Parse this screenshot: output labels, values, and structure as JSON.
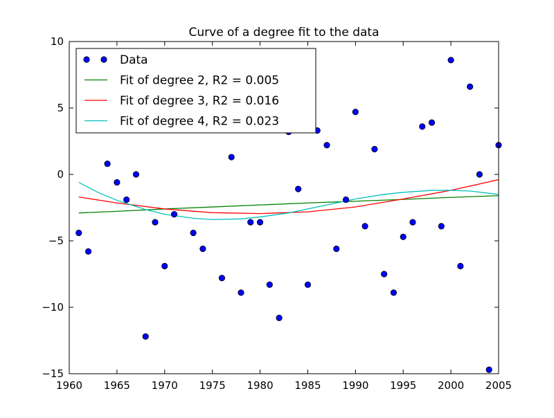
{
  "chart_data": {
    "type": "scatter",
    "title": "Curve of a degree fit to the data",
    "xlabel": "",
    "ylabel": "",
    "xlim": [
      1960,
      2005
    ],
    "ylim": [
      -15,
      10
    ],
    "xticks": [
      1960,
      1965,
      1970,
      1975,
      1980,
      1985,
      1990,
      1995,
      2000,
      2005
    ],
    "yticks": [
      10,
      5,
      0,
      -5,
      -10,
      -15
    ],
    "ytick_labels": [
      "10",
      "5",
      "0",
      "−5",
      "−10",
      "−15"
    ],
    "grid": false,
    "legend_position": "top-left",
    "series": [
      {
        "name": "Data",
        "kind": "markers",
        "color": "#0000ff",
        "x": [
          1961,
          1962,
          1964,
          1965,
          1966,
          1967,
          1968,
          1969,
          1970,
          1971,
          1973,
          1974,
          1976,
          1977,
          1978,
          1979,
          1980,
          1981,
          1982,
          1983,
          1984,
          1985,
          1986,
          1987,
          1988,
          1989,
          1990,
          1991,
          1992,
          1993,
          1994,
          1995,
          1996,
          1997,
          1998,
          1999,
          2000,
          2001,
          2002,
          2003,
          2004,
          2005
        ],
        "y": [
          -4.4,
          -5.8,
          0.8,
          -0.6,
          -1.9,
          0.0,
          -12.2,
          -3.6,
          -6.9,
          -3.0,
          -4.4,
          -5.6,
          -7.8,
          1.3,
          -8.9,
          -3.6,
          -3.6,
          -8.3,
          -10.8,
          3.2,
          -1.1,
          -8.3,
          3.3,
          2.2,
          -5.6,
          -1.9,
          4.7,
          -3.9,
          1.9,
          -7.5,
          -8.9,
          -4.7,
          -3.6,
          3.6,
          3.9,
          -3.9,
          8.6,
          -6.9,
          6.6,
          0.0,
          -14.7,
          2.2
        ]
      },
      {
        "name": "Fit of degree 2, R2 = 0.005",
        "kind": "line",
        "color": "#008000",
        "x": [
          1961,
          1965,
          1970,
          1975,
          1980,
          1985,
          1990,
          1995,
          2000,
          2005
        ],
        "y": [
          -2.9,
          -2.78,
          -2.6,
          -2.45,
          -2.3,
          -2.15,
          -2.02,
          -1.88,
          -1.73,
          -1.6
        ]
      },
      {
        "name": "Fit of degree 3, R2 = 0.016",
        "kind": "line",
        "color": "#ff0000",
        "x": [
          1961,
          1965,
          1970,
          1975,
          1980,
          1985,
          1990,
          1995,
          2000,
          2005
        ],
        "y": [
          -1.7,
          -2.15,
          -2.6,
          -2.88,
          -2.95,
          -2.82,
          -2.45,
          -1.85,
          -1.2,
          -0.4
        ]
      },
      {
        "name": "Fit of degree 4, R2 = 0.023",
        "kind": "line",
        "color": "#00bfbf",
        "x": [
          1961,
          1963,
          1965,
          1968,
          1970,
          1973,
          1975,
          1978,
          1980,
          1983,
          1985,
          1988,
          1990,
          1993,
          1995,
          1998,
          2000,
          2002,
          2005
        ],
        "y": [
          -0.6,
          -1.35,
          -1.95,
          -2.65,
          -3.0,
          -3.3,
          -3.4,
          -3.35,
          -3.2,
          -2.9,
          -2.6,
          -2.15,
          -1.85,
          -1.5,
          -1.35,
          -1.2,
          -1.2,
          -1.25,
          -1.5
        ]
      }
    ]
  }
}
